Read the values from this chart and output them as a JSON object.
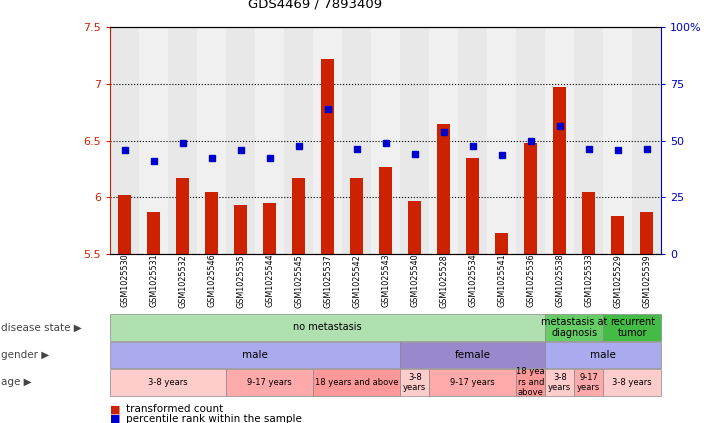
{
  "title": "GDS4469 / 7893409",
  "samples": [
    "GSM1025530",
    "GSM1025531",
    "GSM1025532",
    "GSM1025546",
    "GSM1025535",
    "GSM1025544",
    "GSM1025545",
    "GSM1025537",
    "GSM1025542",
    "GSM1025543",
    "GSM1025540",
    "GSM1025528",
    "GSM1025534",
    "GSM1025541",
    "GSM1025536",
    "GSM1025538",
    "GSM1025533",
    "GSM1025529",
    "GSM1025539"
  ],
  "bar_values": [
    6.02,
    5.87,
    6.17,
    6.05,
    5.93,
    5.95,
    6.17,
    7.22,
    6.17,
    6.27,
    5.97,
    6.65,
    6.35,
    5.68,
    6.48,
    6.97,
    6.05,
    5.83,
    5.87
  ],
  "blue_values": [
    6.42,
    6.32,
    6.48,
    6.35,
    6.42,
    6.35,
    6.45,
    6.78,
    6.43,
    6.48,
    6.38,
    6.58,
    6.45,
    6.37,
    6.5,
    6.63,
    6.43,
    6.42,
    6.43
  ],
  "ylim_left": [
    5.5,
    7.5
  ],
  "ylim_right": [
    0,
    100
  ],
  "yticks_left": [
    5.5,
    6.0,
    6.5,
    7.0,
    7.5
  ],
  "yticks_right": [
    0,
    25,
    50,
    75,
    100
  ],
  "bar_color": "#CC2200",
  "blue_color": "#0000CC",
  "col_bg_even": "#e8e8e8",
  "col_bg_odd": "#f0f0f0",
  "hlines": [
    6.0,
    6.5,
    7.0
  ],
  "disease_state": [
    {
      "label": "no metastasis",
      "start": 0,
      "end": 15,
      "color": "#b0e0b0"
    },
    {
      "label": "metastasis at\ndiagnosis",
      "start": 15,
      "end": 17,
      "color": "#66cc66"
    },
    {
      "label": "recurrent\ntumor",
      "start": 17,
      "end": 19,
      "color": "#44bb44"
    }
  ],
  "gender": [
    {
      "label": "male",
      "start": 0,
      "end": 10,
      "color": "#aaaaee"
    },
    {
      "label": "female",
      "start": 10,
      "end": 15,
      "color": "#9988cc"
    },
    {
      "label": "male",
      "start": 15,
      "end": 19,
      "color": "#aaaaee"
    }
  ],
  "age": [
    {
      "label": "3-8 years",
      "start": 0,
      "end": 4,
      "color": "#ffcccc"
    },
    {
      "label": "9-17 years",
      "start": 4,
      "end": 7,
      "color": "#ffaaaa"
    },
    {
      "label": "18 years and above",
      "start": 7,
      "end": 10,
      "color": "#ff9999"
    },
    {
      "label": "3-8\nyears",
      "start": 10,
      "end": 11,
      "color": "#ffcccc"
    },
    {
      "label": "9-17 years",
      "start": 11,
      "end": 14,
      "color": "#ffaaaa"
    },
    {
      "label": "18 yea\nrs and\nabove",
      "start": 14,
      "end": 15,
      "color": "#ff9999"
    },
    {
      "label": "3-8\nyears",
      "start": 15,
      "end": 16,
      "color": "#ffcccc"
    },
    {
      "label": "9-17\nyears",
      "start": 16,
      "end": 17,
      "color": "#ffaaaa"
    },
    {
      "label": "3-8 years",
      "start": 17,
      "end": 19,
      "color": "#ffcccc"
    }
  ],
  "row_labels": [
    "disease state",
    "gender",
    "age"
  ],
  "arrow_char": "▶",
  "legend_bar_label": "transformed count",
  "legend_blue_label": "percentile rank within the sample",
  "fig_width": 7.11,
  "fig_height": 4.23,
  "dpi": 100
}
